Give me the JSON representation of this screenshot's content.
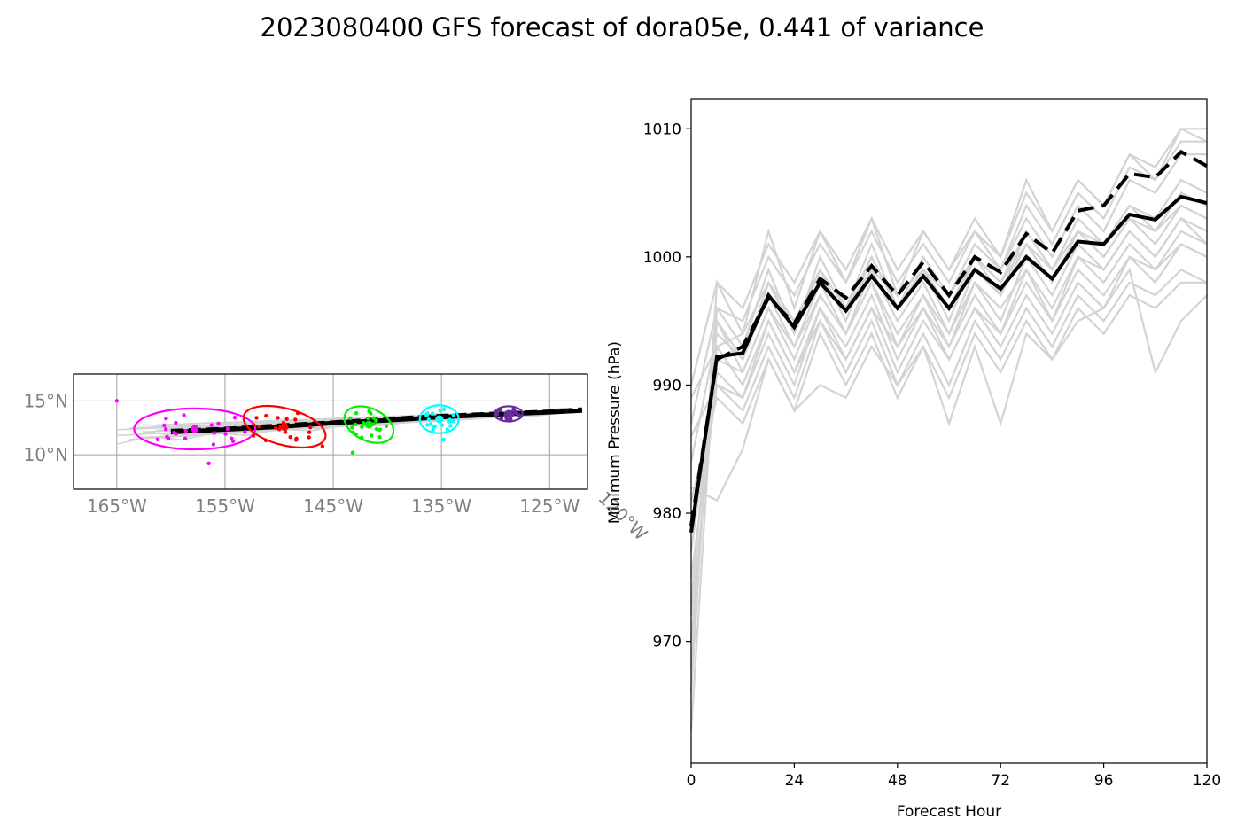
{
  "figure": {
    "title": "2023080400 GFS forecast of dora05e, 0.441 of variance"
  },
  "chart_data": [
    {
      "type": "map-track",
      "lon_ticks": [
        "165°W",
        "155°W",
        "145°W",
        "135°W",
        "125°W",
        "120°W"
      ],
      "lat_ticks": [
        "15°N",
        "10°N"
      ],
      "lon_range": [
        -169,
        -121.5
      ],
      "lat_range": [
        6.8,
        17.5
      ],
      "grid": true,
      "mean_track": {
        "lon": [
          -160,
          -155,
          -150,
          -145,
          -140,
          -135,
          -130,
          -125,
          -122
        ],
        "lat": [
          12.2,
          12.4,
          12.7,
          13.0,
          13.3,
          13.6,
          13.8,
          14.0,
          14.2
        ]
      },
      "control_track": {
        "lon": [
          -160,
          -155,
          -150,
          -145,
          -140,
          -135,
          -130,
          -125,
          -122
        ],
        "lat": [
          12.1,
          12.35,
          12.6,
          12.95,
          13.2,
          13.5,
          13.75,
          13.95,
          14.1
        ]
      },
      "ellipses": [
        {
          "color": "#ff00ff",
          "center": [
            -157.8,
            12.4
          ],
          "half_width_deg": 5.6,
          "half_height_deg": 1.9,
          "tilt_deg": 0
        },
        {
          "color": "#ff0000",
          "center": [
            -149.5,
            12.6
          ],
          "half_width_deg": 3.9,
          "half_height_deg": 1.7,
          "tilt_deg": 15
        },
        {
          "color": "#00ee00",
          "center": [
            -141.7,
            12.8
          ],
          "half_width_deg": 2.4,
          "half_height_deg": 1.5,
          "tilt_deg": 25
        },
        {
          "color": "#00ffff",
          "center": [
            -135.2,
            13.3
          ],
          "half_width_deg": 1.8,
          "half_height_deg": 1.3,
          "tilt_deg": 0
        },
        {
          "color": "#6a2aa0",
          "center": [
            -128.8,
            13.8
          ],
          "half_width_deg": 1.3,
          "half_height_deg": 0.7,
          "tilt_deg": 0
        }
      ]
    },
    {
      "type": "line",
      "xlabel": "Forecast Hour",
      "ylabel": "Minimum Pressure (hPa)",
      "x_ticks": [
        0,
        24,
        48,
        72,
        96,
        120
      ],
      "y_ticks": [
        970,
        980,
        990,
        1000,
        1010
      ],
      "xlim": [
        0,
        120
      ],
      "ylim": [
        960.5,
        1012.3
      ],
      "x": [
        0,
        6,
        12,
        18,
        24,
        30,
        36,
        42,
        48,
        54,
        60,
        66,
        72,
        78,
        84,
        90,
        96,
        102,
        108,
        114,
        120
      ],
      "series": [
        {
          "style": "solid-black",
          "values": [
            978.5,
            992.2,
            992.5,
            997.0,
            994.5,
            998.0,
            995.8,
            998.5,
            996.0,
            998.5,
            996.0,
            999.0,
            997.5,
            1000.0,
            998.3,
            1001.2,
            1001.0,
            1003.3,
            1002.9,
            1004.7,
            1004.2
          ]
        },
        {
          "style": "dashed-black",
          "values": [
            979.0,
            992.0,
            993.0,
            996.8,
            994.8,
            998.3,
            996.8,
            999.3,
            997.0,
            999.6,
            997.0,
            1000.0,
            998.8,
            1001.8,
            1000.3,
            1003.6,
            1004.0,
            1006.5,
            1006.2,
            1008.2,
            1007.1
          ]
        },
        {
          "style": "gray",
          "values": [
            963,
            995,
            992,
            997,
            993,
            998,
            994,
            999,
            995,
            998,
            994,
            999,
            997,
            1001,
            998,
            1002,
            1000,
            1003,
            1001,
            1004,
            1003
          ]
        },
        {
          "style": "gray",
          "values": [
            966,
            998,
            994,
            1002,
            996,
            1002,
            998,
            1003,
            997,
            1002,
            999,
            1002,
            1000,
            1006,
            1002,
            1006,
            1004,
            1008,
            1007,
            1010,
            1010
          ]
        },
        {
          "style": "gray",
          "values": [
            970,
            993,
            990,
            995,
            991,
            996,
            993,
            997,
            992,
            996,
            993,
            997,
            994,
            999,
            995,
            1000,
            998,
            1001,
            999,
            1002,
            1001
          ]
        },
        {
          "style": "gray",
          "values": [
            972,
            991,
            989,
            994,
            990,
            996,
            992,
            996,
            991,
            995,
            992,
            996,
            993,
            997,
            994,
            998,
            996,
            1000,
            998,
            1001,
            1000
          ]
        },
        {
          "style": "gray",
          "values": [
            975,
            990,
            988,
            993,
            989,
            995,
            991,
            995,
            990,
            994,
            990,
            995,
            992,
            996,
            993,
            997,
            995,
            998,
            997,
            999,
            998
          ]
        },
        {
          "style": "gray",
          "values": [
            968,
            996,
            993,
            999,
            994,
            1000,
            996,
            1001,
            996,
            1000,
            997,
            1001,
            999,
            1003,
            1000,
            1004,
            1002,
            1006,
            1005,
            1008,
            1008
          ]
        },
        {
          "style": "gray",
          "values": [
            977,
            992,
            991,
            996,
            993,
            997,
            994,
            998,
            994,
            997,
            993,
            998,
            996,
            999,
            996,
            1000,
            999,
            1002,
            1000,
            1003,
            1002
          ]
        },
        {
          "style": "gray",
          "values": [
            981,
            989,
            987,
            992,
            988,
            994,
            990,
            994,
            989,
            993,
            989,
            994,
            991,
            995,
            992,
            996,
            994,
            997,
            996,
            998,
            998
          ]
        },
        {
          "style": "gray",
          "values": [
            984,
            994,
            992,
            998,
            995,
            999,
            995,
            1000,
            996,
            999,
            995,
            1000,
            997,
            1002,
            999,
            1003,
            1001,
            1004,
            1003,
            1006,
            1005
          ]
        },
        {
          "style": "gray",
          "values": [
            987,
            996,
            995,
            1000,
            997,
            1001,
            998,
            1002,
            998,
            1001,
            998,
            1002,
            999,
            1004,
            1001,
            1005,
            1003,
            1007,
            1006,
            1009,
            1009
          ]
        },
        {
          "style": "gray",
          "values": [
            989,
            993,
            994,
            998,
            994,
            999,
            996,
            1000,
            996,
            999,
            996,
            1000,
            998,
            1002,
            999,
            1002,
            1001,
            1004,
            1002,
            1005,
            1004
          ]
        },
        {
          "style": "gray",
          "values": [
            990,
            998,
            996,
            1001,
            998,
            1002,
            999,
            1003,
            999,
            1002,
            999,
            1003,
            1000,
            1005,
            1002,
            1006,
            1004,
            1008,
            1006,
            1010,
            1009
          ]
        },
        {
          "style": "gray",
          "values": [
            982,
            981,
            985,
            992,
            988,
            990,
            989,
            993,
            990,
            993,
            987,
            993,
            987,
            994,
            992,
            995,
            996,
            999,
            991,
            995,
            997
          ]
        },
        {
          "style": "gray",
          "values": [
            986,
            990,
            989,
            995,
            991,
            995,
            992,
            996,
            993,
            996,
            992,
            996,
            994,
            998,
            995,
            999,
            997,
            1000,
            999,
            1001,
            1000
          ]
        },
        {
          "style": "gray",
          "values": [
            979,
            992,
            993,
            997,
            995,
            998,
            996,
            999,
            997,
            999,
            997,
            1000,
            998,
            1001,
            999,
            1002,
            1000,
            1003,
            1002,
            1004,
            1003
          ]
        },
        {
          "style": "gray",
          "values": [
            973,
            995,
            991,
            996,
            992,
            997,
            994,
            998,
            993,
            997,
            994,
            998,
            995,
            1000,
            997,
            1001,
            999,
            1002,
            1000,
            1003,
            1001
          ]
        }
      ]
    }
  ]
}
